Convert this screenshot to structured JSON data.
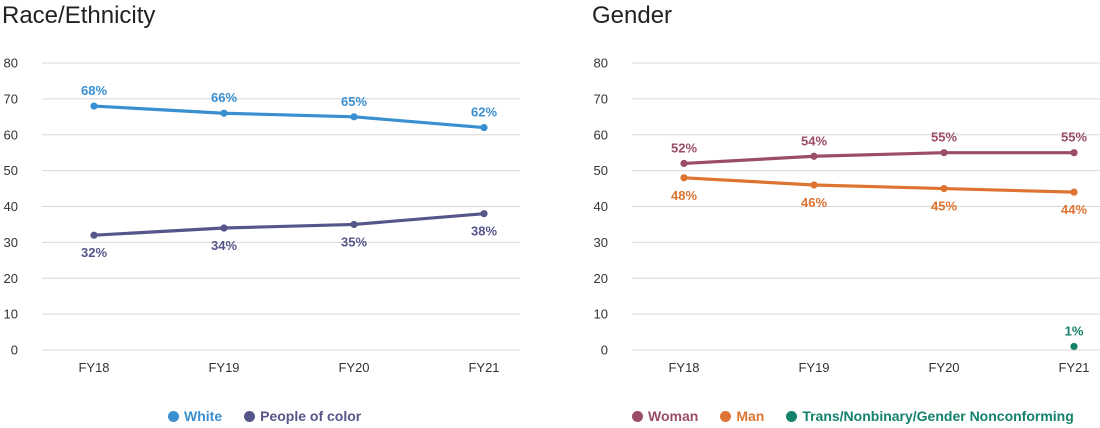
{
  "chart_data": [
    {
      "type": "line",
      "title": "Race/Ethnicity",
      "categories": [
        "FY18",
        "FY19",
        "FY20",
        "FY21"
      ],
      "ylim": [
        0,
        80
      ],
      "yticks": [
        "0",
        "10",
        "20",
        "30",
        "40",
        "50",
        "60",
        "70",
        "80"
      ],
      "grid": true,
      "legend_position": "bottom",
      "series": [
        {
          "name": "White",
          "color": "#3a8fd0",
          "values": [
            68,
            66,
            65,
            62
          ],
          "labels": [
            "68%",
            "66%",
            "65%",
            "62%"
          ],
          "label_position": "above"
        },
        {
          "name": "People of color",
          "color": "#56568a",
          "values": [
            32,
            34,
            35,
            38
          ],
          "labels": [
            "32%",
            "34%",
            "35%",
            "38%"
          ],
          "label_position": "below"
        }
      ]
    },
    {
      "type": "line",
      "title": "Gender",
      "categories": [
        "FY18",
        "FY19",
        "FY20",
        "FY21"
      ],
      "ylim": [
        0,
        80
      ],
      "yticks": [
        "0",
        "10",
        "20",
        "30",
        "40",
        "50",
        "60",
        "70",
        "80"
      ],
      "grid": true,
      "legend_position": "bottom",
      "series": [
        {
          "name": "Woman",
          "color": "#9b4d68",
          "values": [
            52,
            54,
            55,
            55
          ],
          "labels": [
            "52%",
            "54%",
            "55%",
            "55%"
          ],
          "label_position": "above"
        },
        {
          "name": "Man",
          "color": "#dd7431",
          "values": [
            48,
            46,
            45,
            44
          ],
          "labels": [
            "48%",
            "46%",
            "45%",
            "44%"
          ],
          "label_position": "below"
        },
        {
          "name": "Trans/Nonbinary/Gender Nonconforming",
          "color": "#14826a",
          "values": [
            null,
            null,
            null,
            1
          ],
          "labels": [
            "",
            "",
            "",
            "1%"
          ],
          "label_position": "above"
        }
      ]
    }
  ]
}
